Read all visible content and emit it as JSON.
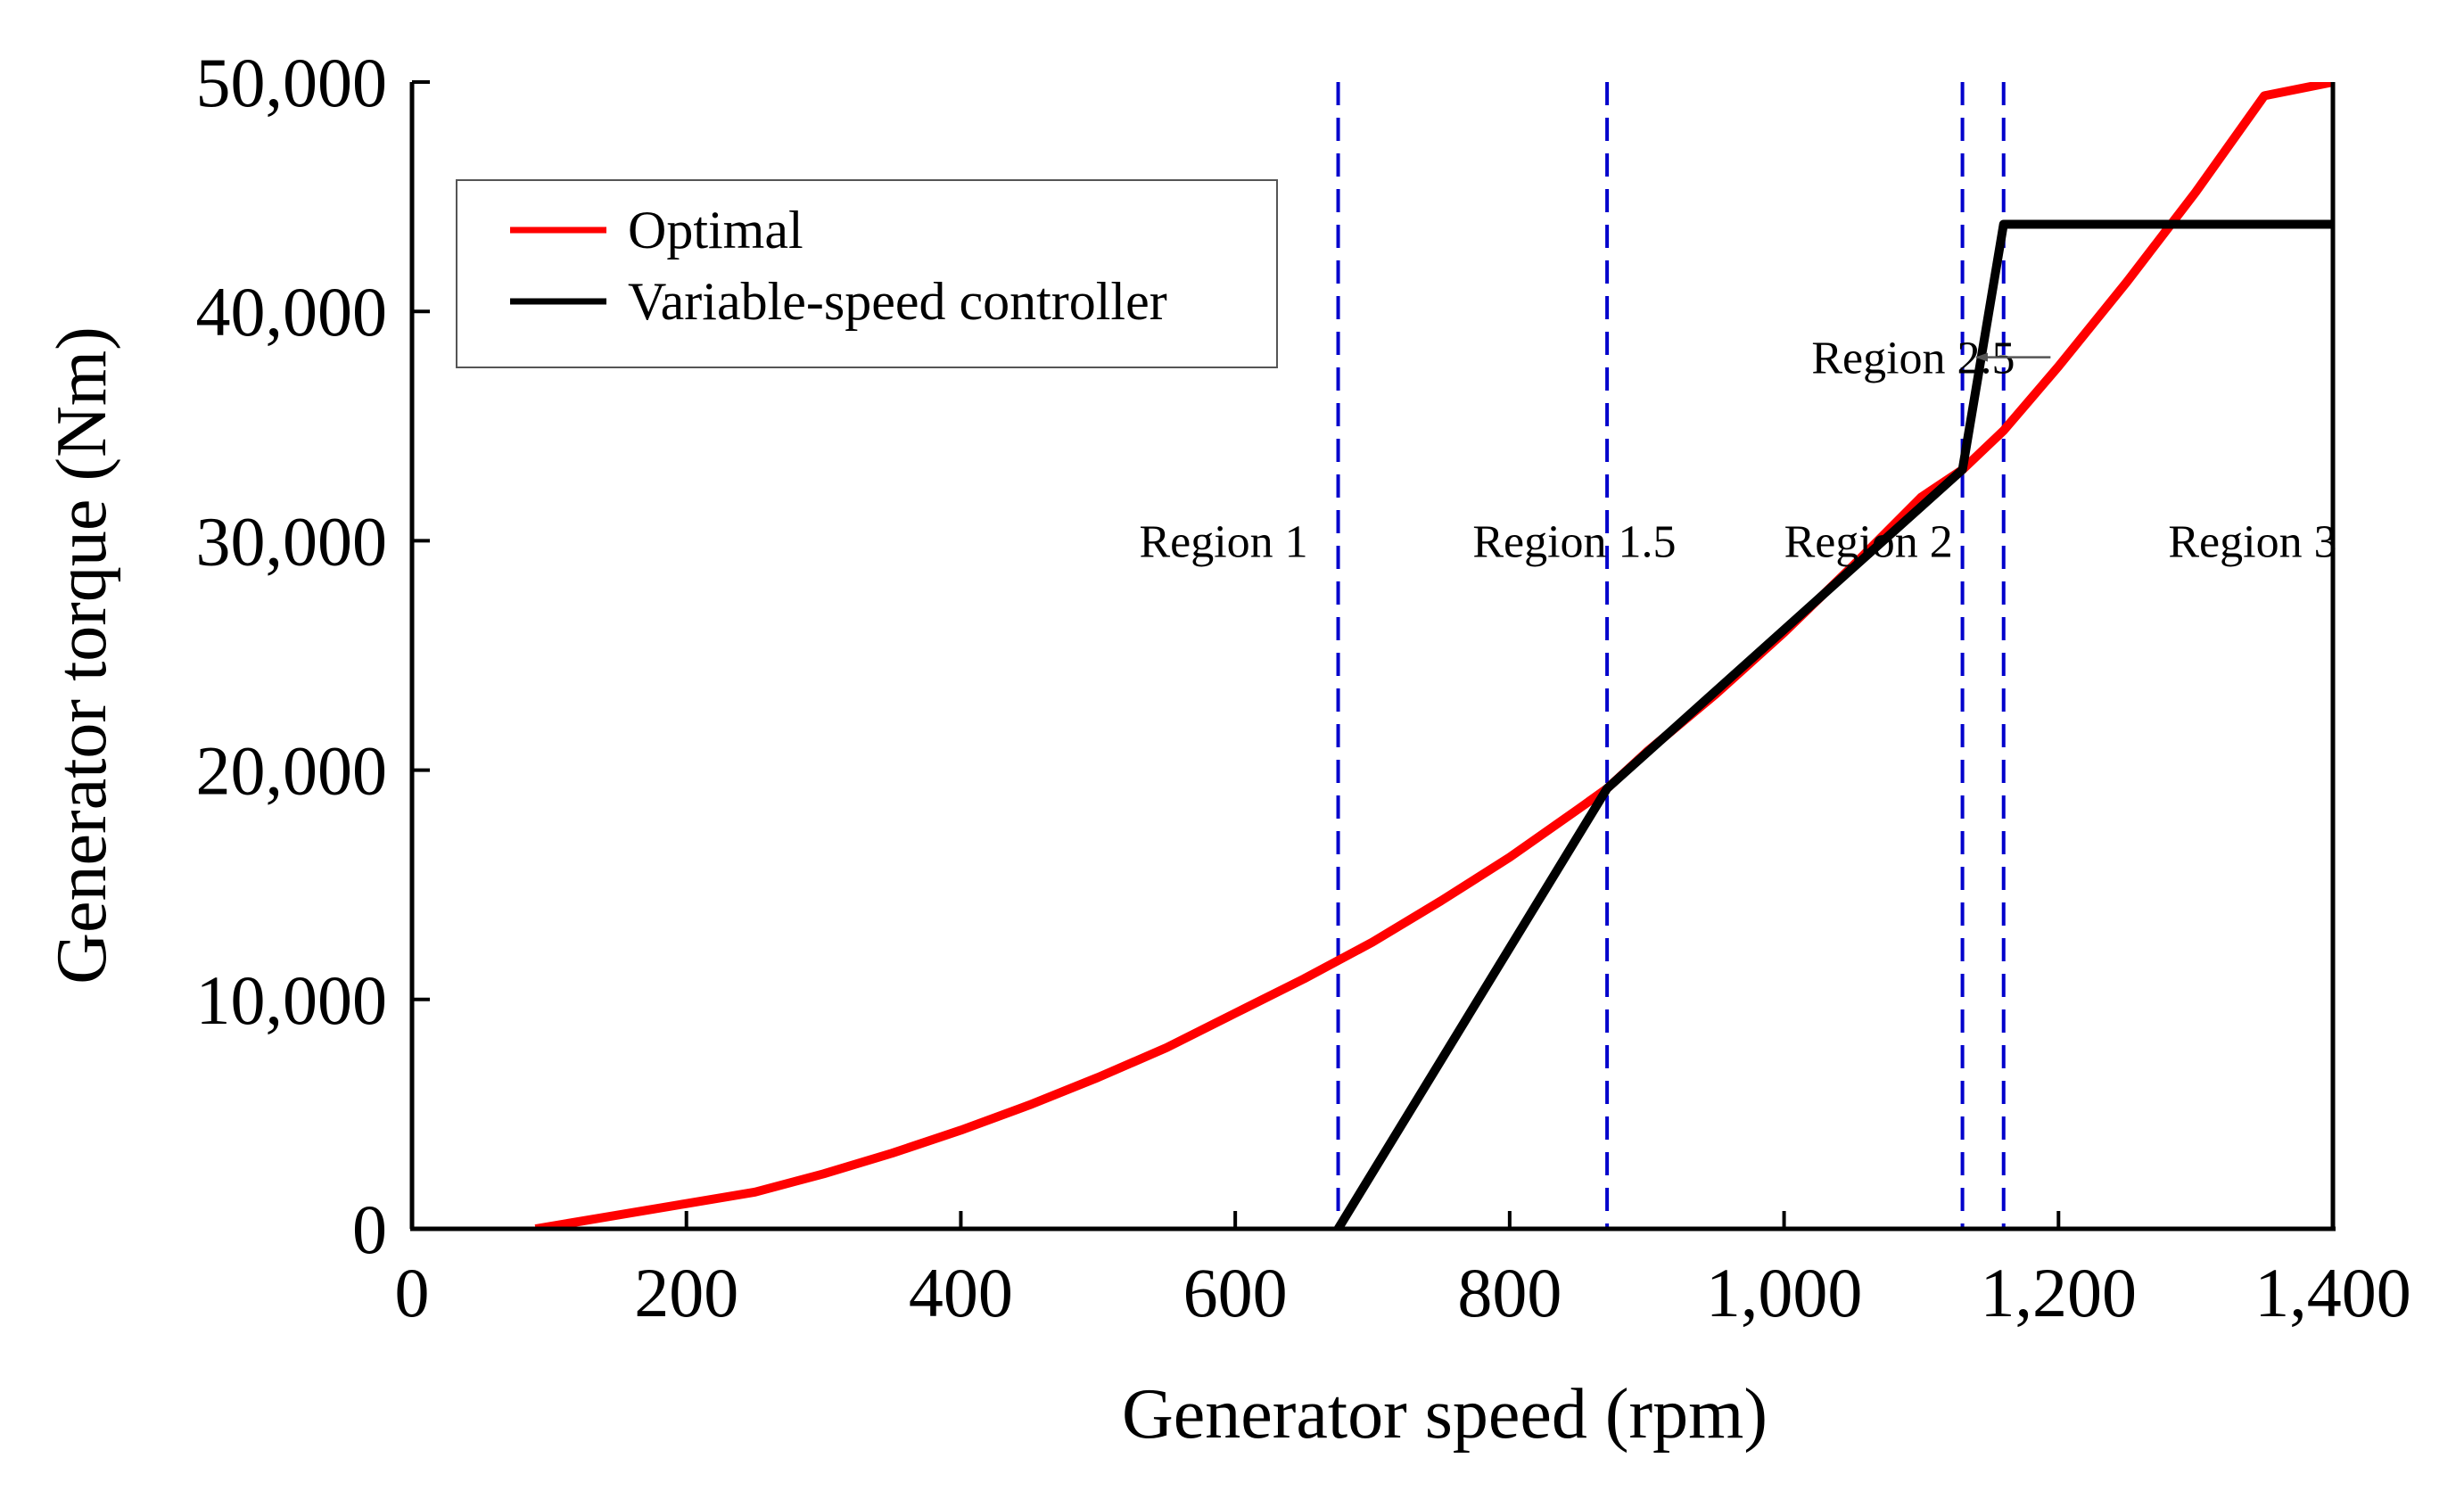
{
  "chart_data": {
    "type": "line",
    "title": "",
    "xlabel": "Generator speed (rpm)",
    "ylabel": "Generator torque (Nm)",
    "xlim": [
      0,
      1400
    ],
    "ylim": [
      0,
      50000
    ],
    "grid": false,
    "xticks": [
      {
        "value": 0,
        "label": "0"
      },
      {
        "value": 200,
        "label": "200"
      },
      {
        "value": 400,
        "label": "400"
      },
      {
        "value": 600,
        "label": "600"
      },
      {
        "value": 800,
        "label": "800"
      },
      {
        "value": 1000,
        "label": "1,000"
      },
      {
        "value": 1200,
        "label": "1,200"
      },
      {
        "value": 1400,
        "label": "1,400"
      }
    ],
    "yticks": [
      {
        "value": 0,
        "label": "0"
      },
      {
        "value": 10000,
        "label": "10,000"
      },
      {
        "value": 20000,
        "label": "20,000"
      },
      {
        "value": 30000,
        "label": "30,000"
      },
      {
        "value": 40000,
        "label": "40,000"
      },
      {
        "value": 50000,
        "label": "50,000"
      }
    ],
    "legend_position": "top-left",
    "series": [
      {
        "name": "Optimal",
        "color": "#ff0000",
        "x": [
          90,
          150,
          200,
          250,
          300,
          350,
          400,
          450,
          500,
          550,
          600,
          650,
          675,
          700,
          750,
          800,
          850,
          871,
          900,
          950,
          1000,
          1050,
          1100,
          1130,
          1160,
          1200,
          1250,
          1300,
          1350,
          1400
        ],
        "y": [
          0,
          600,
          1100,
          1600,
          2400,
          3300,
          4300,
          5400,
          6600,
          7900,
          9400,
          10900,
          11700,
          12500,
          14300,
          16200,
          18300,
          19200,
          20800,
          23300,
          26000,
          28900,
          31900,
          33100,
          34800,
          37600,
          41300,
          45200,
          49400,
          50000
        ]
      },
      {
        "name": "Variable-speed controller",
        "color": "#000000",
        "x": [
          675,
          871,
          1130,
          1160,
          1400
        ],
        "y": [
          0,
          19200,
          33100,
          43800,
          43800
        ]
      }
    ],
    "region_boundaries": [
      {
        "x": 675,
        "color": "#0000cc"
      },
      {
        "x": 871,
        "color": "#0000cc"
      },
      {
        "x": 1130,
        "color": "#0000cc"
      },
      {
        "x": 1160,
        "color": "#0000cc"
      }
    ],
    "annotations": [
      {
        "text": "Region 1",
        "x": 530,
        "y": 30000
      },
      {
        "text": "Region 1.5",
        "x": 773,
        "y": 30000
      },
      {
        "text": "Region 2",
        "x": 1000,
        "y": 30000
      },
      {
        "text": "Region 3",
        "x": 1280,
        "y": 30000
      },
      {
        "text": "Region 2.5",
        "x": 1020,
        "y": 38000,
        "arrow_to": {
          "x": 1140,
          "y": 38000
        }
      }
    ]
  }
}
